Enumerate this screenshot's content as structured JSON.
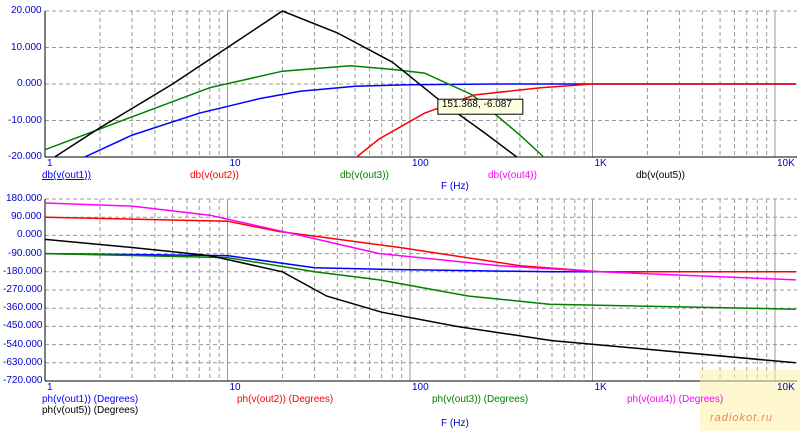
{
  "chart_data": [
    {
      "type": "line",
      "xscale": "log",
      "xlim": [
        1,
        13000
      ],
      "ylim": [
        -20,
        20
      ],
      "xlabel": "F (Hz)",
      "yticks": [
        "20.000",
        "10.000",
        "0.000",
        "-10.000",
        "-20.000"
      ],
      "ytick_values": [
        20,
        10,
        0,
        -10,
        -20
      ],
      "xticks": [
        "1",
        "10",
        "100",
        "1K",
        "10K"
      ],
      "xtick_values": [
        1,
        10,
        100,
        1000,
        10000
      ],
      "series": [
        {
          "name": "db(v(out1))",
          "color": "#0000ff",
          "x": [
            1.65,
            3,
            7,
            15,
            25,
            50,
            100,
            300,
            1000,
            13000
          ],
          "y": [
            -20,
            -14,
            -8,
            -4,
            -2,
            -0.6,
            -0.2,
            0,
            0,
            0
          ]
        },
        {
          "name": "db(v(out2))",
          "color": "#ff0000",
          "x": [
            51,
            68,
            120,
            225,
            520,
            1000,
            13000
          ],
          "y": [
            -20,
            -15,
            -8,
            -3,
            -1,
            0,
            0
          ]
        },
        {
          "name": "db(v(out3))",
          "color": "#008000",
          "x": [
            1,
            3,
            8,
            20,
            47,
            80,
            120,
            220,
            400,
            540
          ],
          "y": [
            -18,
            -9,
            -1,
            3.5,
            5,
            4,
            3,
            -3,
            -14,
            -20
          ]
        },
        {
          "name": "db(v(out4))",
          "color": "#ff00ff",
          "x": [],
          "y": []
        },
        {
          "name": "db(v(out5))",
          "color": "#000000",
          "x": [
            1.13,
            2,
            5,
            10,
            20,
            40,
            80,
            150,
            250,
            385
          ],
          "y": [
            -20,
            -12,
            0,
            10,
            20,
            14,
            6,
            -5,
            -13,
            -20
          ]
        }
      ],
      "annotation": "151.368, -6.087"
    },
    {
      "type": "line",
      "xscale": "log",
      "xlim": [
        1,
        13000
      ],
      "ylim": [
        -720,
        180
      ],
      "xlabel": "F (Hz)",
      "yticks": [
        "180.000",
        "90.000",
        "0.000",
        "-90.000",
        "-180.000",
        "-270.000",
        "-360.000",
        "-450.000",
        "-540.000",
        "-630.000",
        "-720.000"
      ],
      "ytick_values": [
        180,
        90,
        0,
        -90,
        -180,
        -270,
        -360,
        -450,
        -540,
        -630,
        -720
      ],
      "xticks": [
        "1",
        "10",
        "100",
        "1K",
        "10K"
      ],
      "xtick_values": [
        1,
        10,
        100,
        1000,
        10000
      ],
      "series": [
        {
          "name": "ph(v(out1)) (Degrees)",
          "color": "#0000ff",
          "x": [
            1,
            10,
            30,
            100,
            600,
            13000
          ],
          "y": [
            -90,
            -100,
            -160,
            -170,
            -180,
            -180
          ]
        },
        {
          "name": "ph(v(out2)) (Degrees)",
          "color": "#ff0000",
          "x": [
            1,
            10,
            19,
            88,
            400,
            1100,
            13000
          ],
          "y": [
            90,
            70,
            20,
            -60,
            -150,
            -180,
            -180
          ]
        },
        {
          "name": "ph(v(out3)) (Degrees)",
          "color": "#008000",
          "x": [
            1,
            10,
            30,
            68,
            210,
            580,
            13000
          ],
          "y": [
            -90,
            -110,
            -180,
            -220,
            -300,
            -340,
            -365
          ]
        },
        {
          "name": "ph(v(out4)) (Degrees)",
          "color": "#ff00ff",
          "x": [
            1,
            3,
            8,
            25,
            68,
            310,
            1100,
            13000
          ],
          "y": [
            160,
            145,
            100,
            0,
            -90,
            -150,
            -180,
            -220
          ]
        },
        {
          "name": "ph(v(out5)) (Degrees)",
          "color": "#000000",
          "x": [
            1,
            3,
            8,
            20,
            35,
            70,
            180,
            600,
            13000
          ],
          "y": [
            -20,
            -60,
            -100,
            -180,
            -300,
            -380,
            -450,
            -520,
            -630
          ]
        }
      ]
    }
  ],
  "watermark": "radiokot.ru"
}
